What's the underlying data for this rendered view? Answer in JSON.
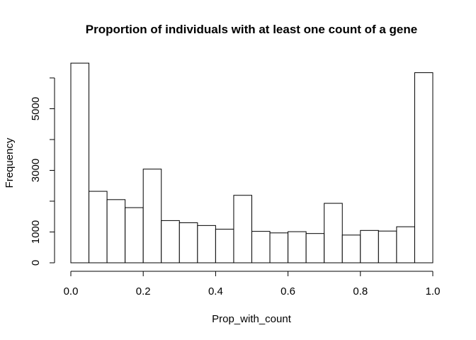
{
  "chart_data": {
    "type": "bar",
    "title": "Proportion of individuals with at least one count of a gene",
    "xlabel": "Prop_with_count",
    "ylabel": "Frequency",
    "bin_edges": [
      0.0,
      0.05,
      0.1,
      0.15,
      0.2,
      0.25,
      0.3,
      0.35,
      0.4,
      0.45,
      0.5,
      0.55,
      0.6,
      0.65,
      0.7,
      0.75,
      0.8,
      0.85,
      0.9,
      0.95,
      1.0
    ],
    "values": [
      6480,
      2320,
      2050,
      1790,
      3040,
      1370,
      1300,
      1210,
      1090,
      2190,
      1020,
      970,
      1010,
      950,
      1930,
      900,
      1050,
      1030,
      1170,
      6170
    ],
    "xlim": [
      0.0,
      1.0
    ],
    "ylim": [
      0,
      6000
    ],
    "x_ticks": [
      "0.0",
      "0.2",
      "0.4",
      "0.6",
      "0.8",
      "1.0"
    ],
    "y_ticks": [
      "0",
      "1000",
      "3000",
      "5000"
    ],
    "grid": false,
    "legend": "none"
  }
}
